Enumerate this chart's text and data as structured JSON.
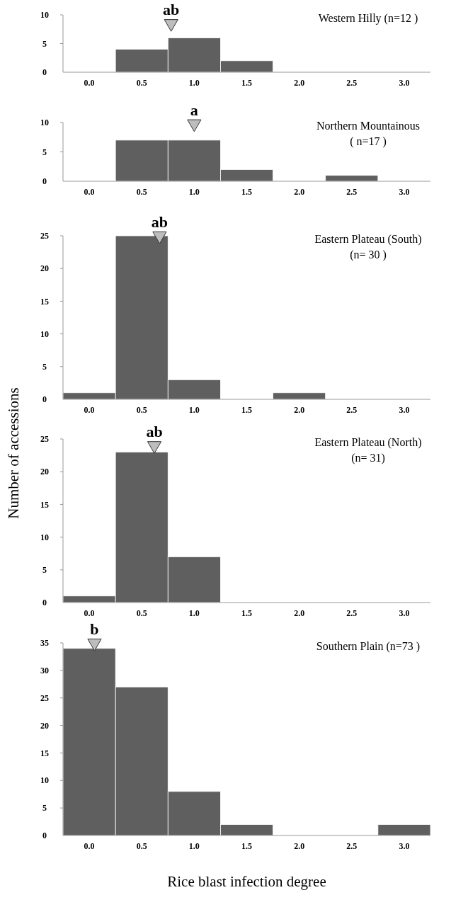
{
  "chart_data": [
    {
      "type": "histogram",
      "title": "Western Hilly (n=12 )",
      "bins": [
        -0.25,
        0.25,
        0.75,
        1.25,
        1.75,
        2.25,
        2.75,
        3.25
      ],
      "values": [
        0,
        4,
        6,
        2,
        0,
        0,
        0
      ],
      "color": "#5f5f5f",
      "xlim": [
        -0.25,
        3.25
      ],
      "xticks": [
        {
          "value": 0,
          "label": "0.0"
        },
        0.5,
        {
          "value": 1,
          "label": "1.0"
        },
        1.5,
        {
          "value": 2,
          "label": "2.0"
        },
        2.5,
        {
          "value": 3,
          "label": "3.0"
        }
      ],
      "ylim": [
        0,
        10
      ],
      "yticks": [
        0,
        5,
        10
      ],
      "marker": "triangle",
      "series": [
        {
          "type": "scatter",
          "x": [
            0.78
          ],
          "values": [
            8.5
          ],
          "color": "#bdbdbd"
        }
      ],
      "annotations": [
        {
          "text": "ab",
          "x": 0.78,
          "y": 8.5
        }
      ]
    },
    {
      "type": "histogram",
      "title": "Northern Mountainous\n( n=17 )",
      "bins": [
        -0.25,
        0.25,
        0.75,
        1.25,
        1.75,
        2.25,
        2.75,
        3.25
      ],
      "values": [
        0,
        7,
        7,
        2,
        0,
        1,
        0
      ],
      "color": "#5f5f5f",
      "xlim": [
        -0.25,
        3.25
      ],
      "xticks": [
        {
          "value": 0,
          "label": "0.0"
        },
        0.5,
        {
          "value": 1,
          "label": "1.0"
        },
        1.5,
        {
          "value": 2,
          "label": "2.0"
        },
        2.5,
        {
          "value": 3,
          "label": "3.0"
        }
      ],
      "ylim": [
        0,
        10
      ],
      "yticks": [
        0,
        5,
        10
      ],
      "marker": "triangle",
      "series": [
        {
          "type": "scatter",
          "x": [
            1.0
          ],
          "values": [
            9.8
          ],
          "color": "#bdbdbd"
        }
      ],
      "annotations": [
        {
          "text": "a",
          "x": 1.0,
          "y": 9.8
        }
      ]
    },
    {
      "type": "histogram",
      "title": "Eastern Plateau (South)\n(n= 30 )",
      "ylabel": "Number of accessions",
      "bins": [
        -0.25,
        0.25,
        0.75,
        1.25,
        1.75,
        2.25,
        2.75,
        3.25
      ],
      "values": [
        1,
        25,
        3,
        0,
        1,
        0,
        0
      ],
      "color": "#5f5f5f",
      "xlim": [
        -0.25,
        3.25
      ],
      "xticks": [
        {
          "value": 0,
          "label": "0.0"
        },
        0.5,
        {
          "value": 1,
          "label": "1.0"
        },
        1.5,
        {
          "value": 2,
          "label": "2.0"
        },
        2.5,
        {
          "value": 3,
          "label": "3.0"
        }
      ],
      "ylim": [
        0,
        25
      ],
      "yticks": [
        0,
        5,
        10,
        15,
        20,
        25
      ],
      "marker": "triangle",
      "series": [
        {
          "type": "scatter",
          "x": [
            0.67
          ],
          "values": [
            25
          ],
          "color": "#bdbdbd"
        }
      ],
      "annotations": [
        {
          "text": "ab",
          "x": 0.67,
          "y": 25
        }
      ]
    },
    {
      "type": "histogram",
      "title": "Eastern Plateau (North)\n(n= 31)",
      "bins": [
        -0.25,
        0.25,
        0.75,
        1.25,
        1.75,
        2.25,
        2.75,
        3.25
      ],
      "values": [
        1,
        23,
        7,
        0,
        0,
        0,
        0
      ],
      "color": "#5f5f5f",
      "xlim": [
        -0.25,
        3.25
      ],
      "xticks": [
        {
          "value": 0,
          "label": "0.0"
        },
        0.5,
        {
          "value": 1,
          "label": "1.0"
        },
        1.5,
        {
          "value": 2,
          "label": "2.0"
        },
        2.5,
        {
          "value": 3,
          "label": "3.0"
        }
      ],
      "ylim": [
        0,
        25
      ],
      "yticks": [
        0,
        5,
        10,
        15,
        20,
        25
      ],
      "marker": "triangle",
      "series": [
        {
          "type": "scatter",
          "x": [
            0.62
          ],
          "values": [
            24
          ],
          "color": "#bdbdbd"
        }
      ],
      "annotations": [
        {
          "text": "ab",
          "x": 0.62,
          "y": 24
        }
      ]
    },
    {
      "type": "histogram",
      "title": "Southern Plain (n=73 )",
      "xlabel": "Rice blast infection degree",
      "bins": [
        -0.25,
        0.25,
        0.75,
        1.25,
        1.75,
        2.25,
        2.75,
        3.25
      ],
      "values": [
        34,
        27,
        8,
        2,
        0,
        0,
        2
      ],
      "color": "#5f5f5f",
      "xlim": [
        -0.25,
        3.25
      ],
      "xticks": [
        {
          "value": 0,
          "label": "0.0"
        },
        0.5,
        {
          "value": 1,
          "label": "1.0"
        },
        1.5,
        {
          "value": 2,
          "label": "2.0"
        },
        2.5,
        {
          "value": 3,
          "label": "3.0"
        }
      ],
      "ylim": [
        0,
        35
      ],
      "yticks": [
        0,
        5,
        10,
        15,
        20,
        25,
        30,
        35
      ],
      "marker": "triangle",
      "series": [
        {
          "type": "scatter",
          "x": [
            0.05
          ],
          "values": [
            35
          ],
          "color": "#bdbdbd"
        }
      ],
      "annotations": [
        {
          "text": "b",
          "x": 0.05,
          "y": 35
        }
      ]
    }
  ]
}
